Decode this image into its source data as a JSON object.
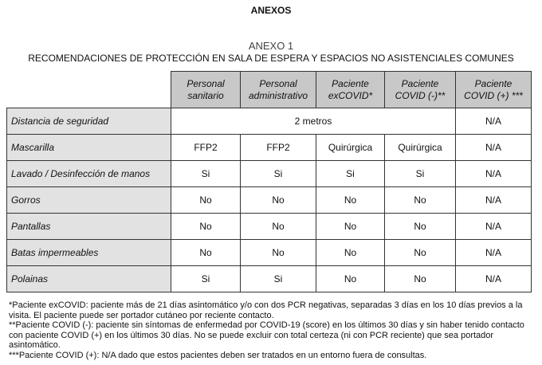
{
  "heading": "ANEXOS",
  "annex_title": "ANEXO 1",
  "annex_subtitle": "RECOMENDACIONES DE PROTECCIÓN EN SALA DE ESPERA Y ESPACIOS NO ASISTENCIALES COMUNES",
  "table": {
    "columns": [
      {
        "line1": "Personal",
        "line2": "sanitario"
      },
      {
        "line1": "Personal",
        "line2": "administrativo"
      },
      {
        "line1": "Paciente",
        "line2": "exCOVID*"
      },
      {
        "line1": "Paciente",
        "line2": "COVID (-)**"
      },
      {
        "line1": "Paciente",
        "line2": "COVID (+) ***"
      }
    ],
    "distance_row": {
      "label": "Distancia de seguridad",
      "merged_value": "2 metros",
      "last": "N/A"
    },
    "rows": [
      {
        "label": "Mascarilla",
        "cells": [
          "FFP2",
          "FFP2",
          "Quirúrgica",
          "Quirúrgica",
          "N/A"
        ]
      },
      {
        "label": "Lavado / Desinfección de manos",
        "cells": [
          "Si",
          "Si",
          "Si",
          "Si",
          "N/A"
        ]
      },
      {
        "label": "Gorros",
        "cells": [
          "No",
          "No",
          "No",
          "No",
          "N/A"
        ]
      },
      {
        "label": "Pantallas",
        "cells": [
          "No",
          "No",
          "No",
          "No",
          "N/A"
        ]
      },
      {
        "label": "Batas impermeables",
        "cells": [
          "No",
          "No",
          "No",
          "No",
          "N/A"
        ]
      },
      {
        "label": "Polainas",
        "cells": [
          "Si",
          "Si",
          "No",
          "No",
          "N/A"
        ]
      }
    ]
  },
  "footnotes": [
    "*Paciente exCOVID: paciente más de 21 días asintomático y/o con dos PCR negativas, separadas 3 días en los 10 días previos a la visita. El paciente puede ser portador cutáneo por reciente contacto.",
    "**Paciente COVID (-): paciente sin síntomas de enfermedad por COVID-19 (score) en los últimos 30 días y sin haber tenido contacto con paciente COVID (+) en los últimos 30 días. No se puede excluir con total certeza (ni con PCR reciente) que sea portador asintomático.",
    "***Paciente COVID (+): N/A dado que estos pacientes deben ser tratados en un entorno fuera de consultas."
  ]
}
